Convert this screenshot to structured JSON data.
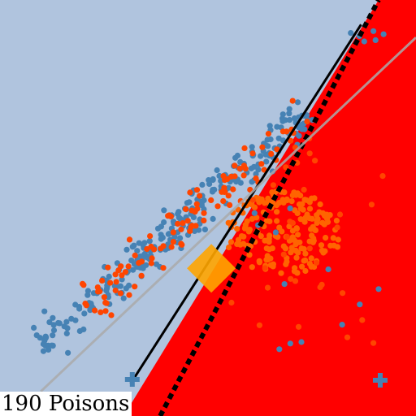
{
  "caption": "190 Poisons",
  "colors": {
    "region_blue": "#b0c4de",
    "region_red": "#ff0000",
    "class_blue": "#4682b4",
    "class_orange": "#ff4500",
    "poison_point": "#ff6400",
    "target": "#ffa500",
    "clean_boundary": "#000000",
    "poisoned_boundary": "#000000",
    "third_line": "#aaaaaa"
  },
  "chart_data": {
    "type": "scatter",
    "title": "",
    "xlabel": "",
    "ylabel": "",
    "xlim": [
      0,
      1
    ],
    "ylim": [
      0,
      1
    ],
    "decision_regions": [
      {
        "name": "blue-region",
        "color": "#b0c4de"
      },
      {
        "name": "red-region",
        "color": "#ff0000",
        "boundary": {
          "x1": 0.297,
          "y1": 0.0,
          "x2": 0.91,
          "y2": 1.0
        }
      }
    ],
    "lines": [
      {
        "name": "clean-boundary",
        "style": "solid",
        "color": "#000000",
        "points": [
          [
            0.314,
            0.078
          ],
          [
            0.868,
            0.941
          ]
        ]
      },
      {
        "name": "poisoned-boundary",
        "style": "dotted",
        "color": "#000000",
        "points": [
          [
            0.385,
            0.0
          ],
          [
            0.91,
            1.0
          ]
        ]
      },
      {
        "name": "gray-line",
        "style": "solid",
        "color": "#aaaaaa",
        "points": [
          [
            0.098,
            0.059
          ],
          [
            1.0,
            0.91
          ]
        ]
      }
    ],
    "markers": [
      {
        "name": "target",
        "shape": "diamond",
        "color": "#ffa500",
        "x": 0.508,
        "y": 0.355
      },
      {
        "name": "plus-left",
        "shape": "plus",
        "color": "#4682b4",
        "x": 0.318,
        "y": 0.088
      },
      {
        "name": "plus-right",
        "shape": "plus",
        "color": "#4682b4",
        "x": 0.914,
        "y": 0.086
      }
    ],
    "series": [
      {
        "color": "#4682b4",
        "band": {
          "x1": 0.09,
          "y1": 0.16,
          "x2": 0.74,
          "y2": 0.73,
          "spread": 0.022
        },
        "count": 260,
        "seed": 11
      },
      {
        "color": "#ff4500",
        "band": {
          "x1": 0.2,
          "y1": 0.26,
          "x2": 0.74,
          "y2": 0.71,
          "spread": 0.03
        },
        "count": 110,
        "seed": 23
      },
      {
        "color": "#ff6400",
        "cluster": {
          "cx": 0.68,
          "cy": 0.44,
          "rx": 0.14,
          "ry": 0.1
        },
        "count": 190,
        "seed": 37
      },
      {
        "color": "#ff4500",
        "scatter": {
          "x1": 0.5,
          "y1": 0.17,
          "x2": 0.92,
          "y2": 0.68
        },
        "count": 30,
        "seed": 51
      },
      {
        "color": "#4682b4",
        "scatter": {
          "x1": 0.6,
          "y1": 0.15,
          "x2": 0.92,
          "y2": 0.62
        },
        "count": 12,
        "seed": 67
      },
      {
        "color": "#4682b4",
        "scatter": {
          "x1": 0.84,
          "y1": 0.9,
          "x2": 0.93,
          "y2": 0.93
        },
        "count": 6,
        "seed": 79
      }
    ]
  }
}
